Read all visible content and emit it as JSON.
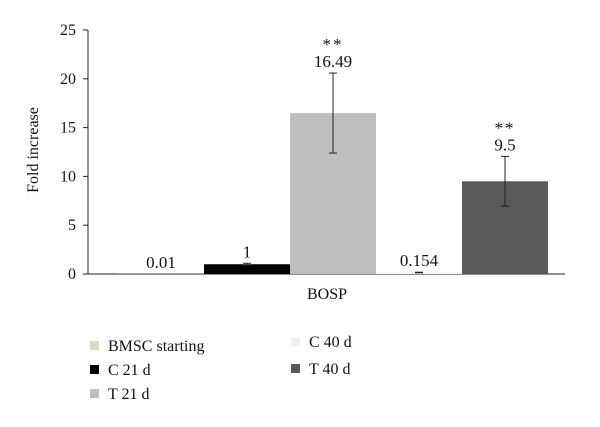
{
  "chart_data": {
    "type": "bar",
    "title": "",
    "ylabel": "Fold increase",
    "xlabel": "",
    "categories": [
      "BOSP"
    ],
    "ylim": [
      0,
      25
    ],
    "yticks": [
      "0",
      "5",
      "10",
      "15",
      "20",
      "25"
    ],
    "grid": false,
    "legend_position": "bottom-left",
    "series": [
      {
        "name": "BMSC  starting",
        "value": 0.01,
        "label": "0.01",
        "error": 0,
        "significance": "",
        "color": "#ddd8c0"
      },
      {
        "name": "C 21 d",
        "value": 1,
        "label": "1",
        "error": 0.1,
        "significance": "",
        "color": "#000000"
      },
      {
        "name": "T 21 d",
        "value": 16.49,
        "label": "16.49",
        "error": 4.1,
        "significance": "**",
        "color": "#bebebe"
      },
      {
        "name": "C 40 d",
        "value": 0.154,
        "label": "0.154",
        "error": 0.03,
        "significance": "",
        "color": "#f0f0f0"
      },
      {
        "name": "T 40 d",
        "value": 9.5,
        "label": "9.5",
        "error": 2.55,
        "significance": "**",
        "color": "#595959"
      }
    ]
  }
}
